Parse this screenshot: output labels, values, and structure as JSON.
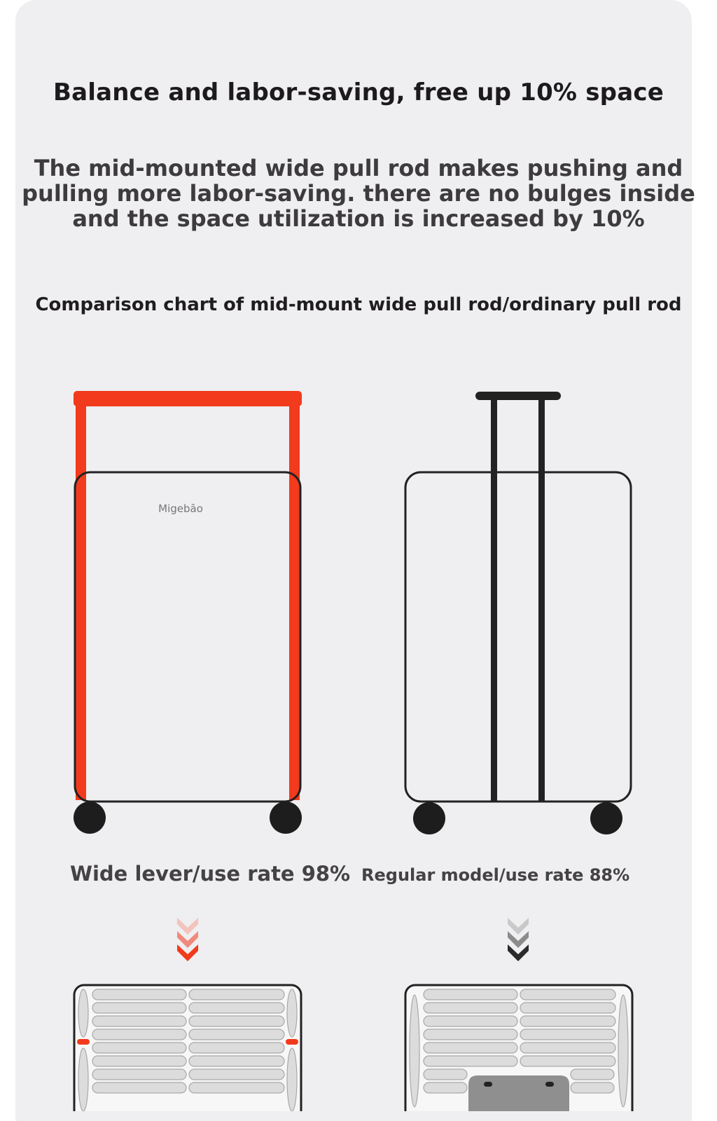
{
  "title": "Balance and labor-saving, free up 10% space",
  "description": [
    "The mid-mounted wide pull rod makes pushing and",
    "pulling more labor-saving. there are no bulges inside",
    "and the space utilization is increased by 10%"
  ],
  "subtitle": "Comparison chart of mid-mount wide pull rod/ordinary pull rod",
  "left": {
    "brand_logo": "Migebāo",
    "label": "Wide lever/use rate 98%",
    "use_rate_percent": 98,
    "accent": "#f23a1c"
  },
  "right": {
    "label": "Regular model/use rate 88%",
    "use_rate_percent": 88,
    "accent": "#222222"
  },
  "colors": {
    "card_bg": "#efeef0",
    "red": "#f23a1c",
    "outline": "#222222"
  }
}
